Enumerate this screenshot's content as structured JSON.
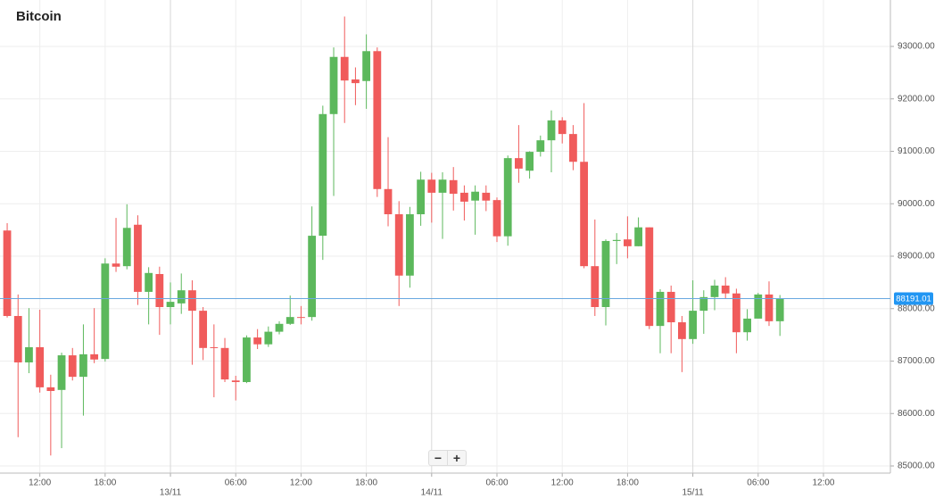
{
  "chart_data": {
    "type": "candlestick",
    "title": "Bitcoin",
    "x": [
      -15,
      -14,
      -13,
      -12,
      -11,
      -10,
      -9,
      -8,
      -7,
      -6,
      -5,
      -4,
      -3,
      -2,
      -1,
      0,
      1,
      2,
      3,
      4,
      5,
      6,
      7,
      8,
      9,
      10,
      11,
      12,
      13,
      14,
      15,
      16,
      17,
      18,
      19,
      20,
      21,
      22,
      23,
      24,
      25,
      26,
      27,
      28,
      29,
      30,
      31,
      32,
      33,
      34,
      35,
      36,
      37,
      38,
      39,
      40,
      41,
      42,
      43,
      44,
      45,
      46,
      47,
      48,
      49,
      50,
      51,
      52,
      53,
      54,
      55,
      56
    ],
    "open": [
      89490,
      87860,
      86975,
      87265,
      86500,
      86450,
      87110,
      86700,
      87130,
      87040,
      88860,
      88810,
      89600,
      88320,
      88660,
      88030,
      88100,
      88350,
      87960,
      87265,
      87250,
      86630,
      86600,
      87450,
      87320,
      87560,
      87710,
      87840,
      87840,
      89390,
      91710,
      92800,
      92370,
      92340,
      92910,
      90280,
      89800,
      88630,
      89800,
      90460,
      90210,
      90450,
      90210,
      90060,
      90210,
      90070,
      89380,
      90870,
      90630,
      90990,
      91210,
      91590,
      91330,
      90800,
      88810,
      88030,
      89290,
      89320,
      89190,
      89550,
      87670,
      88320,
      87740,
      87420,
      87960,
      88220,
      88440,
      88290,
      87550,
      87810,
      88270,
      87760
    ],
    "high": [
      89630,
      88270,
      88010,
      87980,
      86740,
      87160,
      87250,
      87700,
      88010,
      88960,
      89730,
      89990,
      89780,
      88790,
      88800,
      88500,
      88670,
      88540,
      88030,
      87700,
      87440,
      86720,
      87490,
      87610,
      87660,
      87760,
      88250,
      88050,
      89950,
      91870,
      92980,
      93570,
      92600,
      93230,
      92980,
      91270,
      90050,
      89940,
      90610,
      90590,
      90600,
      90700,
      90350,
      90350,
      90350,
      90120,
      90920,
      91500,
      91000,
      91300,
      91780,
      91650,
      91500,
      91920,
      89700,
      89320,
      89440,
      89760,
      89740,
      89550,
      88370,
      88440,
      87860,
      88540,
      88350,
      88550,
      88600,
      88380,
      87990,
      88300,
      88520,
      88260
    ],
    "low": [
      87830,
      85550,
      86770,
      86400,
      85200,
      85340,
      86630,
      85960,
      86960,
      86990,
      88700,
      88750,
      88070,
      87700,
      87500,
      87700,
      87900,
      86930,
      87020,
      86310,
      86600,
      86250,
      86580,
      87230,
      87270,
      87510,
      87690,
      87700,
      87770,
      88930,
      90150,
      91540,
      91880,
      91810,
      90130,
      89570,
      88050,
      88400,
      89580,
      89640,
      89330,
      89870,
      89680,
      89410,
      89860,
      89270,
      89200,
      90400,
      90480,
      90900,
      90600,
      91150,
      90640,
      88770,
      87860,
      87680,
      88850,
      88960,
      89190,
      87610,
      87150,
      87150,
      86790,
      87330,
      87520,
      87970,
      88190,
      87150,
      87390,
      87810,
      87670,
      87480
    ],
    "close": [
      87860,
      86975,
      87265,
      86500,
      86430,
      87110,
      86700,
      87130,
      87030,
      88860,
      88800,
      89540,
      88320,
      88680,
      88030,
      88130,
      88350,
      87960,
      87250,
      87250,
      86650,
      86600,
      87450,
      87320,
      87560,
      87710,
      87840,
      87830,
      89390,
      91710,
      92800,
      92350,
      92300,
      92910,
      90280,
      89800,
      88630,
      89800,
      90460,
      90210,
      90460,
      90190,
      90040,
      90230,
      90060,
      89380,
      90870,
      90670,
      90990,
      91210,
      91590,
      91330,
      90800,
      88810,
      88030,
      89290,
      89310,
      89190,
      89550,
      87670,
      88320,
      87740,
      87420,
      87960,
      88220,
      88440,
      88290,
      87550,
      87810,
      88270,
      87760,
      88191.01
    ],
    "up_color": "#5cb85c",
    "down_color": "#f05b5b",
    "price_line": 88191.01,
    "price_line_color": "#6aa8e0",
    "price_label_color": "#2196f3",
    "xlim": [
      -15.66,
      66.15
    ],
    "xticks": [
      {
        "value": -12,
        "label": "12:00"
      },
      {
        "value": -6,
        "label": "18:00"
      },
      {
        "value": 0,
        "label": "13/11"
      },
      {
        "value": 6,
        "label": "06:00"
      },
      {
        "value": 12,
        "label": "12:00"
      },
      {
        "value": 18,
        "label": "18:00"
      },
      {
        "value": 24,
        "label": "14/11"
      },
      {
        "value": 30,
        "label": "06:00"
      },
      {
        "value": 36,
        "label": "12:00"
      },
      {
        "value": 42,
        "label": "18:00"
      },
      {
        "value": 48,
        "label": "15/11"
      },
      {
        "value": 54,
        "label": "06:00"
      },
      {
        "value": 60,
        "label": "12:00"
      }
    ],
    "ylim": [
      84864,
      93885
    ],
    "yticks": [
      {
        "value": 85000,
        "label": "85000.00"
      },
      {
        "value": 86000,
        "label": "86000.00"
      },
      {
        "value": 87000,
        "label": "87000.00"
      },
      {
        "value": 88000,
        "label": "88000.00"
      },
      {
        "value": 89000,
        "label": "89000.00"
      },
      {
        "value": 90000,
        "label": "90000.00"
      },
      {
        "value": 91000,
        "label": "91000.00"
      },
      {
        "value": 92000,
        "label": "92000.00"
      },
      {
        "value": 93000,
        "label": "93000.00"
      }
    ],
    "grid": true,
    "y_axis_side": "right"
  },
  "zoom_controls": [
    "−",
    "+"
  ]
}
